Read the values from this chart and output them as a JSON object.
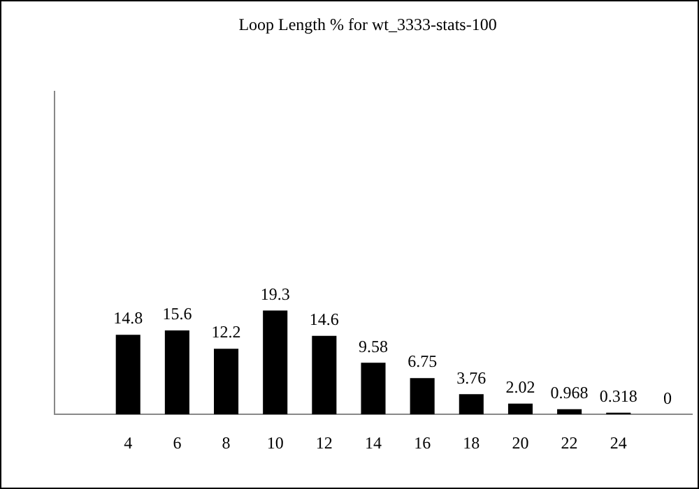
{
  "chart_data": {
    "type": "bar",
    "title": "Loop Length % for wt_3333-stats-100",
    "categories": [
      null,
      "4",
      "6",
      "8",
      "10",
      "12",
      "14",
      "16",
      "18",
      "20",
      "22",
      "24",
      null
    ],
    "values": [
      null,
      14.8,
      15.6,
      12.2,
      19.3,
      14.6,
      9.58,
      6.75,
      3.76,
      2.02,
      0.968,
      0.318,
      0
    ],
    "color": "#000000",
    "data_labels": true,
    "grid": false,
    "legend": false,
    "tick_labels": "x"
  }
}
